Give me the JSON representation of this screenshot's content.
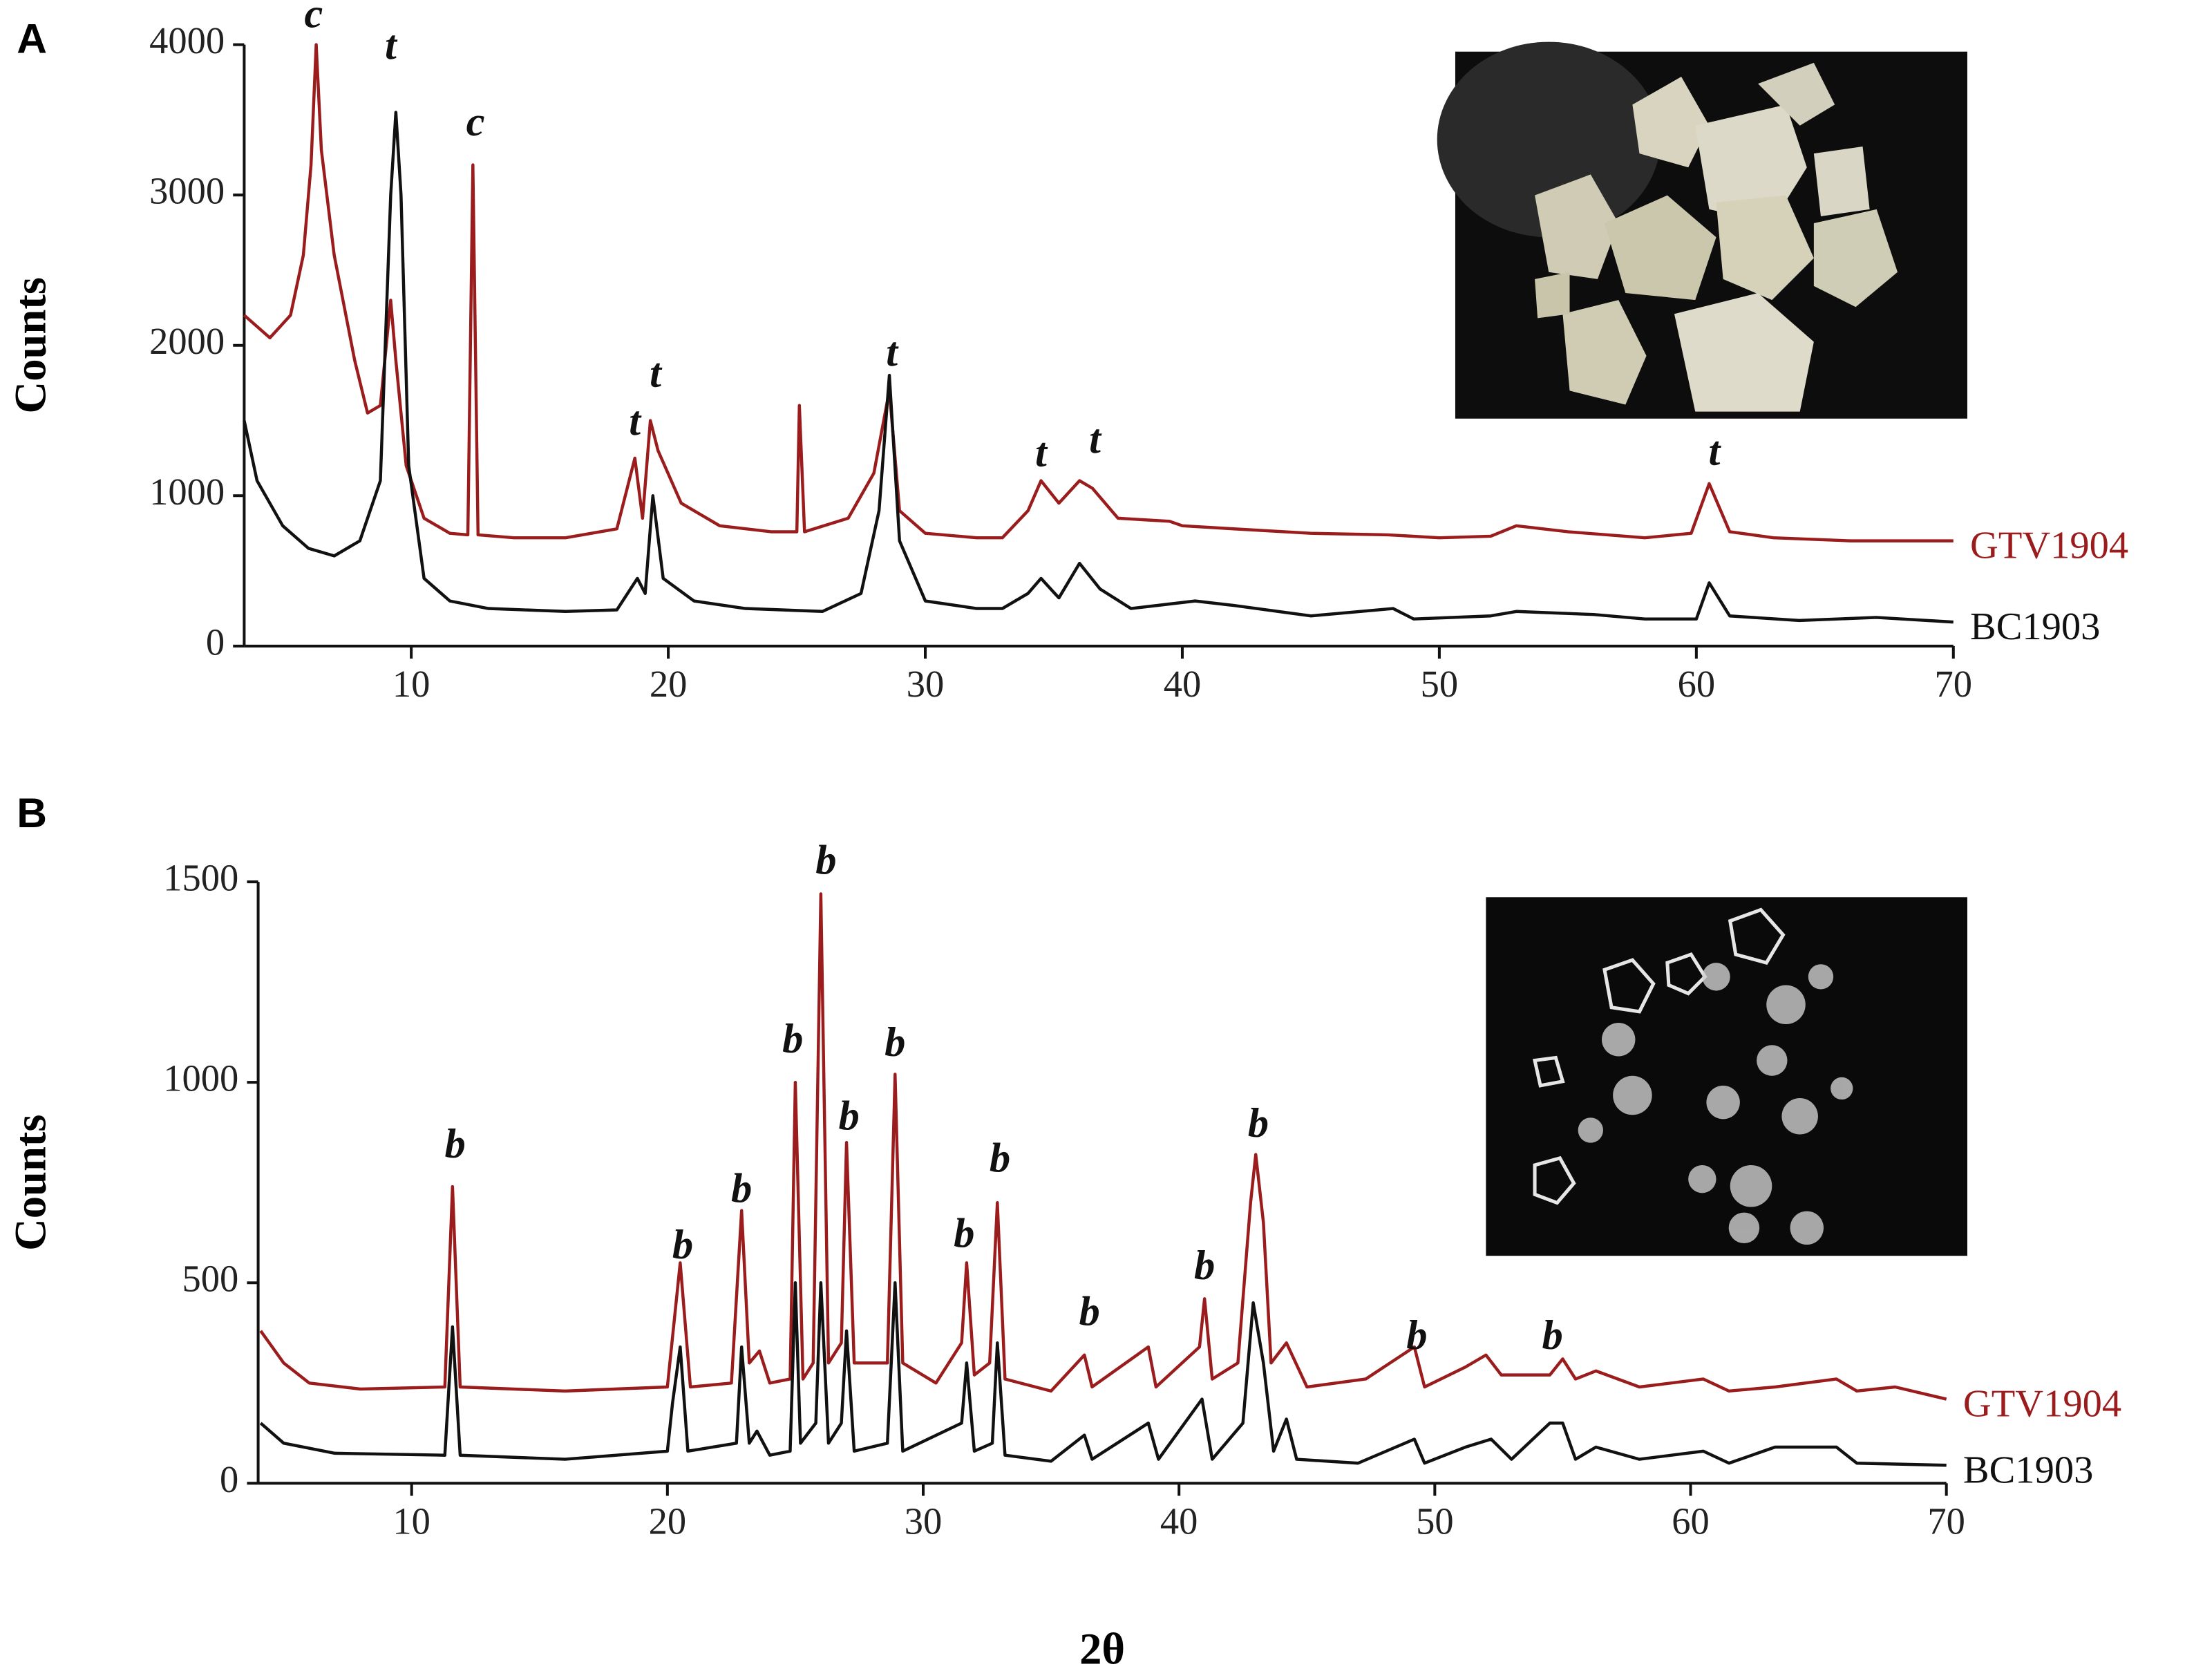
{
  "chart_data": [
    {
      "type": "line",
      "panel": "A",
      "y_label": "Counts",
      "xlim": [
        3.5,
        70
      ],
      "ylim": [
        0,
        4000
      ],
      "xticks": [
        10,
        20,
        30,
        40,
        50,
        60,
        70
      ],
      "yticks": [
        0,
        1000,
        2000,
        3000,
        4000
      ],
      "series": [
        {
          "name": "GTV1904",
          "color": "#9b1c1c",
          "x": [
            3.5,
            4.5,
            5.3,
            5.8,
            6.1,
            6.3,
            6.5,
            7,
            7.8,
            8.3,
            8.8,
            9.2,
            9.4,
            9.8,
            10.5,
            11.5,
            12.2,
            12.4,
            12.6,
            14,
            16,
            18,
            18.7,
            19,
            19.3,
            19.6,
            20.5,
            22,
            24,
            25,
            25.1,
            25.3,
            27,
            28,
            28.6,
            29,
            30,
            32,
            33,
            34,
            34.5,
            35.2,
            36,
            36.5,
            37.5,
            39.5,
            40,
            42,
            45,
            48,
            50,
            52,
            53,
            55,
            58,
            59.8,
            60.5,
            61.3,
            63,
            66,
            70
          ],
          "values": [
            2200,
            2050,
            2200,
            2600,
            3200,
            4000,
            3300,
            2600,
            1900,
            1550,
            1600,
            2300,
            1900,
            1200,
            850,
            750,
            740,
            3200,
            740,
            720,
            720,
            780,
            1250,
            850,
            1500,
            1300,
            950,
            800,
            760,
            760,
            1600,
            760,
            850,
            1150,
            1700,
            900,
            750,
            720,
            720,
            900,
            1100,
            950,
            1100,
            1050,
            850,
            830,
            800,
            780,
            750,
            740,
            720,
            730,
            800,
            760,
            720,
            750,
            1080,
            760,
            720,
            700,
            700
          ]
        },
        {
          "name": "BC1903",
          "color": "#111111",
          "x": [
            3.5,
            4,
            5,
            6,
            7,
            8,
            8.8,
            9.2,
            9.4,
            9.6,
            9.9,
            10.5,
            11.5,
            13,
            16,
            18,
            18.8,
            19.1,
            19.4,
            19.8,
            21,
            23,
            26,
            27.5,
            28.2,
            28.6,
            29,
            30,
            32,
            33,
            34,
            34.5,
            35.2,
            36,
            36.8,
            38,
            40.5,
            42,
            45,
            48.2,
            49,
            52,
            53,
            56,
            58,
            60,
            60.5,
            61.3,
            64,
            67,
            70
          ],
          "values": [
            1500,
            1100,
            800,
            650,
            600,
            700,
            1100,
            3000,
            3550,
            3000,
            1200,
            450,
            300,
            250,
            230,
            240,
            450,
            350,
            1000,
            450,
            300,
            250,
            230,
            350,
            900,
            1800,
            700,
            300,
            250,
            250,
            350,
            450,
            320,
            550,
            380,
            250,
            300,
            270,
            200,
            250,
            180,
            200,
            230,
            210,
            180,
            180,
            420,
            200,
            170,
            190,
            160
          ]
        }
      ],
      "annotations": [
        {
          "text": "c",
          "x": 6.2,
          "y": 4180
        },
        {
          "text": "t",
          "x": 9.2,
          "y": 3970
        },
        {
          "text": "c",
          "x": 12.5,
          "y": 3460
        },
        {
          "text": "t",
          "x": 18.7,
          "y": 1470
        },
        {
          "text": "t",
          "x": 19.5,
          "y": 1790
        },
        {
          "text": "t",
          "x": 28.7,
          "y": 1930
        },
        {
          "text": "t",
          "x": 34.5,
          "y": 1260
        },
        {
          "text": "t",
          "x": 36.6,
          "y": 1350
        },
        {
          "text": "t",
          "x": 60.7,
          "y": 1270
        }
      ]
    },
    {
      "type": "line",
      "panel": "B",
      "y_label": "Counts",
      "x_label": "2θ",
      "xlim": [
        4,
        70
      ],
      "ylim": [
        0,
        1500
      ],
      "xticks": [
        10,
        20,
        30,
        40,
        50,
        60,
        70
      ],
      "yticks": [
        0,
        500,
        1000,
        1500
      ],
      "series": [
        {
          "name": "GTV1904",
          "color": "#9b1c1c",
          "x": [
            4.1,
            5,
            6,
            8,
            11.3,
            11.6,
            11.9,
            16,
            20,
            20.5,
            20.9,
            22.5,
            22.9,
            23.2,
            23.6,
            24,
            24.8,
            25,
            25.3,
            25.7,
            26,
            26.3,
            26.8,
            27,
            27.3,
            28.6,
            28.9,
            29.2,
            30.5,
            31.5,
            31.7,
            32,
            32.6,
            32.9,
            33.2,
            35,
            36.3,
            36.6,
            38.8,
            39.1,
            40.8,
            41,
            41.3,
            42.3,
            42.8,
            43,
            43.3,
            43.6,
            44.2,
            45,
            47.3,
            49.2,
            49.6,
            51.2,
            52,
            52.6,
            54.5,
            55,
            55.5,
            56.3,
            58,
            60.5,
            61.5,
            63.3,
            65.7,
            66.5,
            68,
            70
          ],
          "values": [
            380,
            300,
            250,
            235,
            240,
            740,
            240,
            230,
            240,
            550,
            240,
            250,
            680,
            300,
            330,
            250,
            260,
            1000,
            260,
            300,
            1470,
            300,
            350,
            850,
            300,
            300,
            1020,
            300,
            250,
            350,
            550,
            270,
            300,
            700,
            260,
            230,
            320,
            240,
            340,
            240,
            340,
            460,
            260,
            300,
            700,
            820,
            650,
            300,
            350,
            240,
            260,
            340,
            240,
            290,
            320,
            270,
            270,
            310,
            260,
            280,
            240,
            260,
            230,
            240,
            260,
            230,
            240,
            210
          ]
        },
        {
          "name": "BC1903",
          "color": "#111111",
          "x": [
            4.1,
            5,
            7,
            11.3,
            11.6,
            11.9,
            16,
            20,
            20.2,
            20.5,
            20.8,
            22.7,
            22.9,
            23.2,
            23.5,
            24,
            24.8,
            25,
            25.2,
            25.8,
            26,
            26.3,
            26.8,
            27,
            27.3,
            28.6,
            28.9,
            29.2,
            31.5,
            31.7,
            32,
            32.7,
            32.9,
            33.2,
            35,
            36.3,
            36.6,
            38.8,
            39.2,
            40.9,
            41.3,
            42.5,
            42.9,
            43.3,
            43.7,
            44.2,
            44.6,
            47,
            49.2,
            49.6,
            51.2,
            52.2,
            53,
            54.5,
            55,
            55.5,
            56.3,
            58,
            60.5,
            61.5,
            63.3,
            65.7,
            66.5,
            70
          ],
          "values": [
            150,
            100,
            75,
            70,
            390,
            70,
            60,
            80,
            200,
            340,
            80,
            100,
            340,
            100,
            130,
            70,
            80,
            500,
            100,
            150,
            500,
            100,
            150,
            380,
            80,
            100,
            500,
            80,
            150,
            300,
            80,
            100,
            350,
            70,
            55,
            120,
            60,
            150,
            60,
            210,
            60,
            150,
            450,
            300,
            80,
            160,
            60,
            50,
            110,
            50,
            90,
            110,
            60,
            150,
            150,
            60,
            90,
            60,
            80,
            50,
            90,
            90,
            50,
            45
          ]
        }
      ],
      "annotations": [
        {
          "text": "b",
          "x": 11.7,
          "y": 836
        },
        {
          "text": "b",
          "x": 20.6,
          "y": 585
        },
        {
          "text": "b",
          "x": 22.9,
          "y": 725
        },
        {
          "text": "b",
          "x": 24.9,
          "y": 1098
        },
        {
          "text": "b",
          "x": 26.2,
          "y": 1544
        },
        {
          "text": "b",
          "x": 27.1,
          "y": 906
        },
        {
          "text": "b",
          "x": 28.9,
          "y": 1090
        },
        {
          "text": "b",
          "x": 31.6,
          "y": 613
        },
        {
          "text": "b",
          "x": 33.0,
          "y": 801
        },
        {
          "text": "b",
          "x": 36.5,
          "y": 418
        },
        {
          "text": "b",
          "x": 41.0,
          "y": 533
        },
        {
          "text": "b",
          "x": 43.1,
          "y": 888
        },
        {
          "text": "b",
          "x": 49.3,
          "y": 359
        },
        {
          "text": "b",
          "x": 54.6,
          "y": 359
        }
      ]
    }
  ]
}
